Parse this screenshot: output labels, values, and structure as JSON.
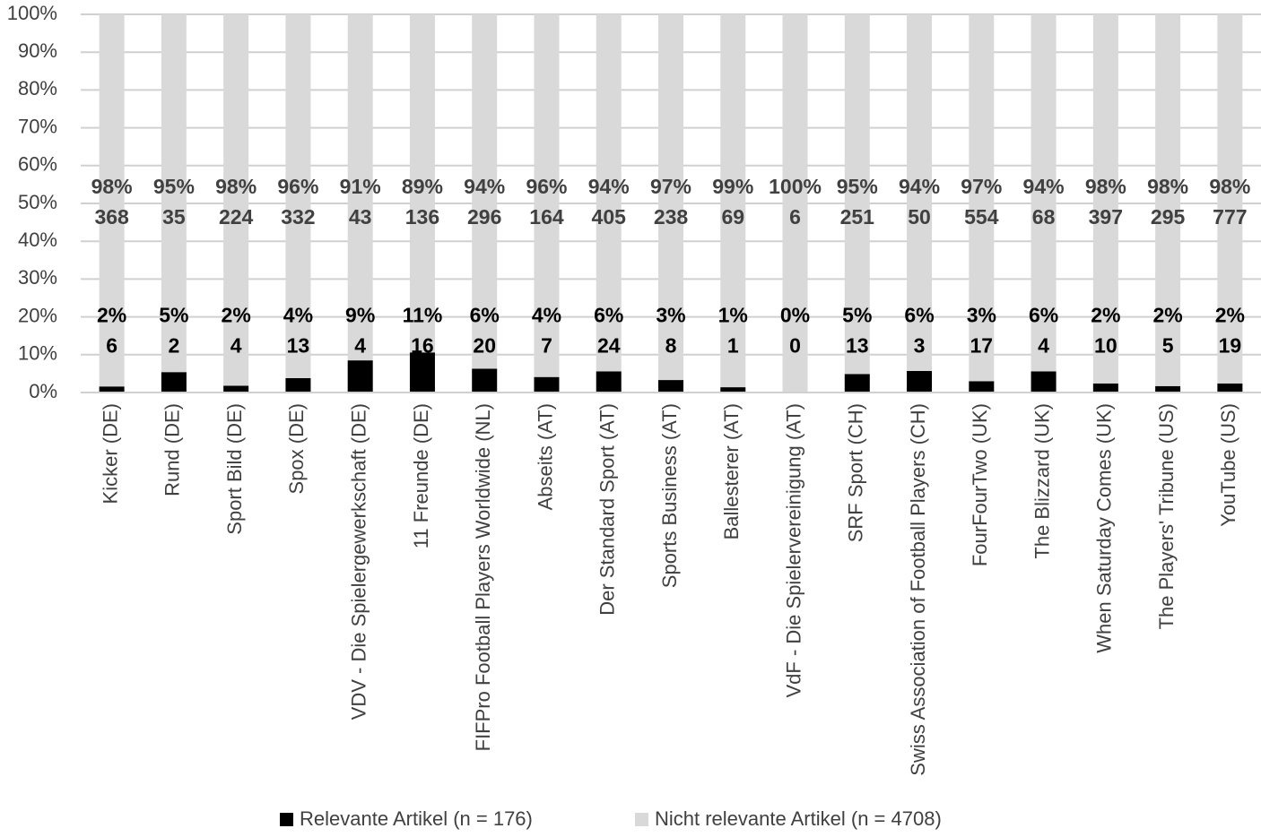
{
  "chart_data": {
    "type": "stacked_bar_percent",
    "categories": [
      "Kicker (DE)",
      "Rund (DE)",
      "Sport Bild (DE)",
      "Spox (DE)",
      "VDV - Die Spielergewerkschaft (DE)",
      "11 Freunde (DE)",
      "FIFPro Football Players Worldwide (NL)",
      "Abseits (AT)",
      "Der Standard Sport (AT)",
      "Sports Business (AT)",
      "Ballesterer (AT)",
      "VdF - Die Spielervereinigung (AT)",
      "SRF Sport (CH)",
      "Swiss Association of Football Players (CH)",
      "FourFourTwo (UK)",
      "The Blizzard (UK)",
      "When Saturday Comes (UK)",
      "The Players' Tribune (US)",
      "YouTube (US)"
    ],
    "series": [
      {
        "name": "Relevante Artikel (n = 176)",
        "color": "#000000",
        "values": [
          1.6,
          5.4,
          1.8,
          3.8,
          8.5,
          10.6,
          6.3,
          4.1,
          5.6,
          3.3,
          1.4,
          0,
          4.9,
          5.7,
          3.0,
          5.6,
          2.4,
          1.7,
          2.4
        ],
        "value_labels": [
          "2%",
          "5%",
          "2%",
          "4%",
          "9%",
          "11%",
          "6%",
          "4%",
          "6%",
          "3%",
          "1%",
          "0%",
          "5%",
          "6%",
          "3%",
          "6%",
          "2%",
          "2%",
          "2%"
        ],
        "counts": [
          6,
          2,
          4,
          13,
          4,
          16,
          20,
          7,
          24,
          8,
          1,
          0,
          13,
          3,
          17,
          4,
          10,
          5,
          19
        ]
      },
      {
        "name": "Nicht relevante Artikel (n = 4708)",
        "color": "#d9d9d9",
        "values": [
          98.4,
          94.6,
          98.2,
          96.2,
          91.5,
          89.4,
          93.7,
          95.9,
          94.4,
          96.7,
          98.6,
          100,
          95.1,
          94.3,
          97.0,
          94.4,
          97.6,
          98.3,
          97.6
        ],
        "value_labels": [
          "98%",
          "95%",
          "98%",
          "96%",
          "91%",
          "89%",
          "94%",
          "96%",
          "94%",
          "97%",
          "99%",
          "100%",
          "95%",
          "94%",
          "97%",
          "94%",
          "98%",
          "98%",
          "98%"
        ],
        "counts": [
          368,
          35,
          224,
          332,
          43,
          136,
          296,
          164,
          405,
          238,
          69,
          6,
          251,
          50,
          554,
          68,
          397,
          295,
          777
        ]
      }
    ],
    "ylim": [
      0,
      100
    ],
    "yticks": [
      {
        "value": 0,
        "label": "0%"
      },
      {
        "value": 10,
        "label": "10%"
      },
      {
        "value": 20,
        "label": "20%"
      },
      {
        "value": 30,
        "label": "30%"
      },
      {
        "value": 40,
        "label": "40%"
      },
      {
        "value": 50,
        "label": "50%"
      },
      {
        "value": 60,
        "label": "60%"
      },
      {
        "value": 70,
        "label": "70%"
      },
      {
        "value": 80,
        "label": "80%"
      },
      {
        "value": 90,
        "label": "90%"
      },
      {
        "value": 100,
        "label": "100%"
      }
    ],
    "grid": true,
    "legend": "bottom"
  }
}
